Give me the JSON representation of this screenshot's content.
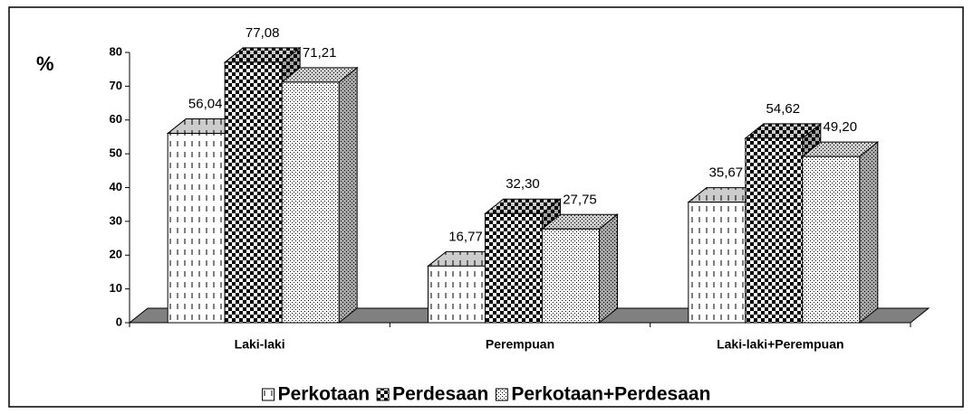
{
  "chart_data": {
    "type": "bar3d",
    "y_label": "%",
    "categories": [
      "Laki-laki",
      "Perempuan",
      "Laki-laki+Perempuan"
    ],
    "series": [
      {
        "name": "Perkotaan",
        "color": "#ffffff",
        "values": [
          56.04,
          16.77,
          35.67
        ],
        "value_labels": [
          "56,04",
          "16,77",
          "35,67"
        ]
      },
      {
        "name": "Perdesaan",
        "color": "#222222",
        "values": [
          77.08,
          32.3,
          54.62
        ],
        "value_labels": [
          "77,08",
          "32,30",
          "54,62"
        ]
      },
      {
        "name": "Perkotaan+Perdesaan",
        "color": "#dddddd",
        "values": [
          71.21,
          27.75,
          49.2
        ],
        "value_labels": [
          "71,21",
          "27,75",
          "49,20"
        ]
      }
    ],
    "ylim": [
      0,
      80
    ],
    "yticks": [
      0,
      10,
      20,
      30,
      40,
      50,
      60,
      70,
      80
    ],
    "legend": "bottom"
  }
}
